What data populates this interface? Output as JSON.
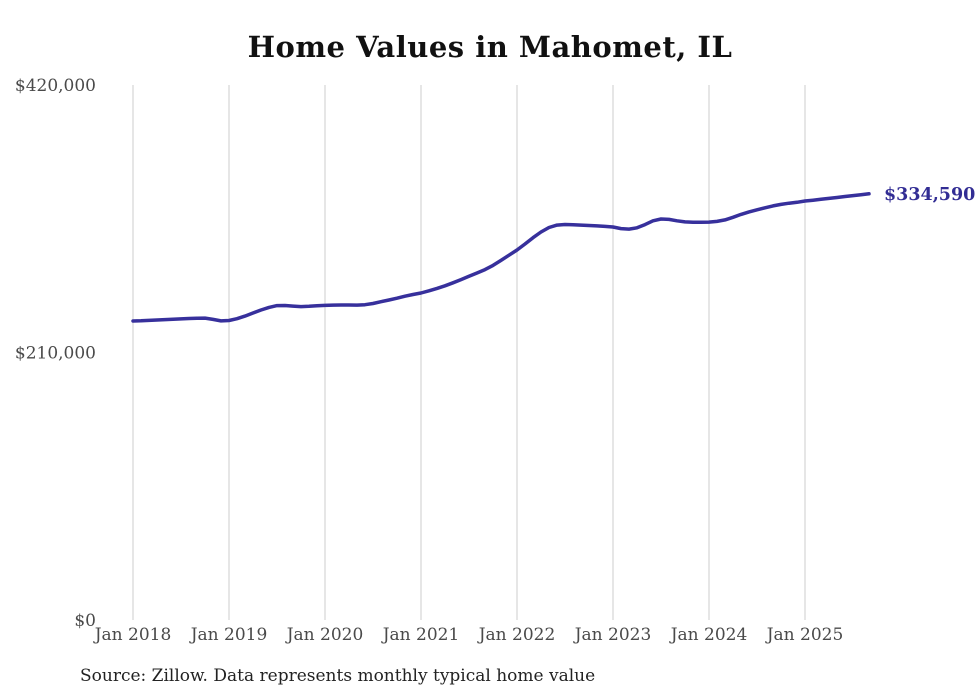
{
  "page": {
    "background": "#ffffff"
  },
  "header": {
    "title": "Home Values in Mahomet, IL"
  },
  "footer": {
    "source_note": "Source: Zillow. Data represents monthly typical home value"
  },
  "colors": {
    "line": "#37309c",
    "end_label": "#322d94",
    "grid": "#cccccc",
    "tick": "#4a4a4a",
    "title": "#111111",
    "source": "#222222"
  },
  "chart_data": {
    "type": "line",
    "title": "Home Values in Mahomet, IL",
    "source": "Source: Zillow. Data represents monthly typical home value",
    "x_start_month": "Jan 2018",
    "x_end_month": "Sep 2025",
    "x_tick_labels": [
      "Jan 2018",
      "Jan 2019",
      "Jan 2020",
      "Jan 2021",
      "Jan 2022",
      "Jan 2023",
      "Jan 2024",
      "Jan 2025"
    ],
    "y_tick_labels": [
      "$0",
      "$210,000",
      "$420,000"
    ],
    "y_ticks": [
      0,
      210000,
      420000
    ],
    "ylim": [
      0,
      420000
    ],
    "grid": "vertical-yearly",
    "legend_position": "none",
    "final_value": 334590,
    "final_value_label": "$334,590",
    "series": [
      {
        "name": "Typical home value (monthly)",
        "values": [
          234700,
          234900,
          235200,
          235500,
          235800,
          236100,
          236400,
          236700,
          236900,
          237000,
          236000,
          234800,
          235100,
          236500,
          238600,
          241000,
          243400,
          245400,
          246800,
          246900,
          246400,
          246000,
          246300,
          246700,
          247000,
          247200,
          247300,
          247300,
          247200,
          247500,
          248500,
          249900,
          251200,
          252600,
          254200,
          255500,
          256700,
          258400,
          260300,
          262400,
          264700,
          267200,
          269800,
          272400,
          275100,
          278400,
          282300,
          286400,
          290500,
          295200,
          300100,
          304600,
          308100,
          310000,
          310500,
          310300,
          310000,
          309700,
          309400,
          309000,
          308500,
          307300,
          306900,
          307900,
          310400,
          313400,
          314800,
          314500,
          313400,
          312500,
          312300,
          312300,
          312400,
          312900,
          314100,
          316100,
          318400,
          320400,
          322000,
          323600,
          325100,
          326300,
          327200,
          327900,
          328900,
          329600,
          330300,
          331000,
          331700,
          332500,
          333200,
          333900,
          334590
        ]
      }
    ]
  }
}
